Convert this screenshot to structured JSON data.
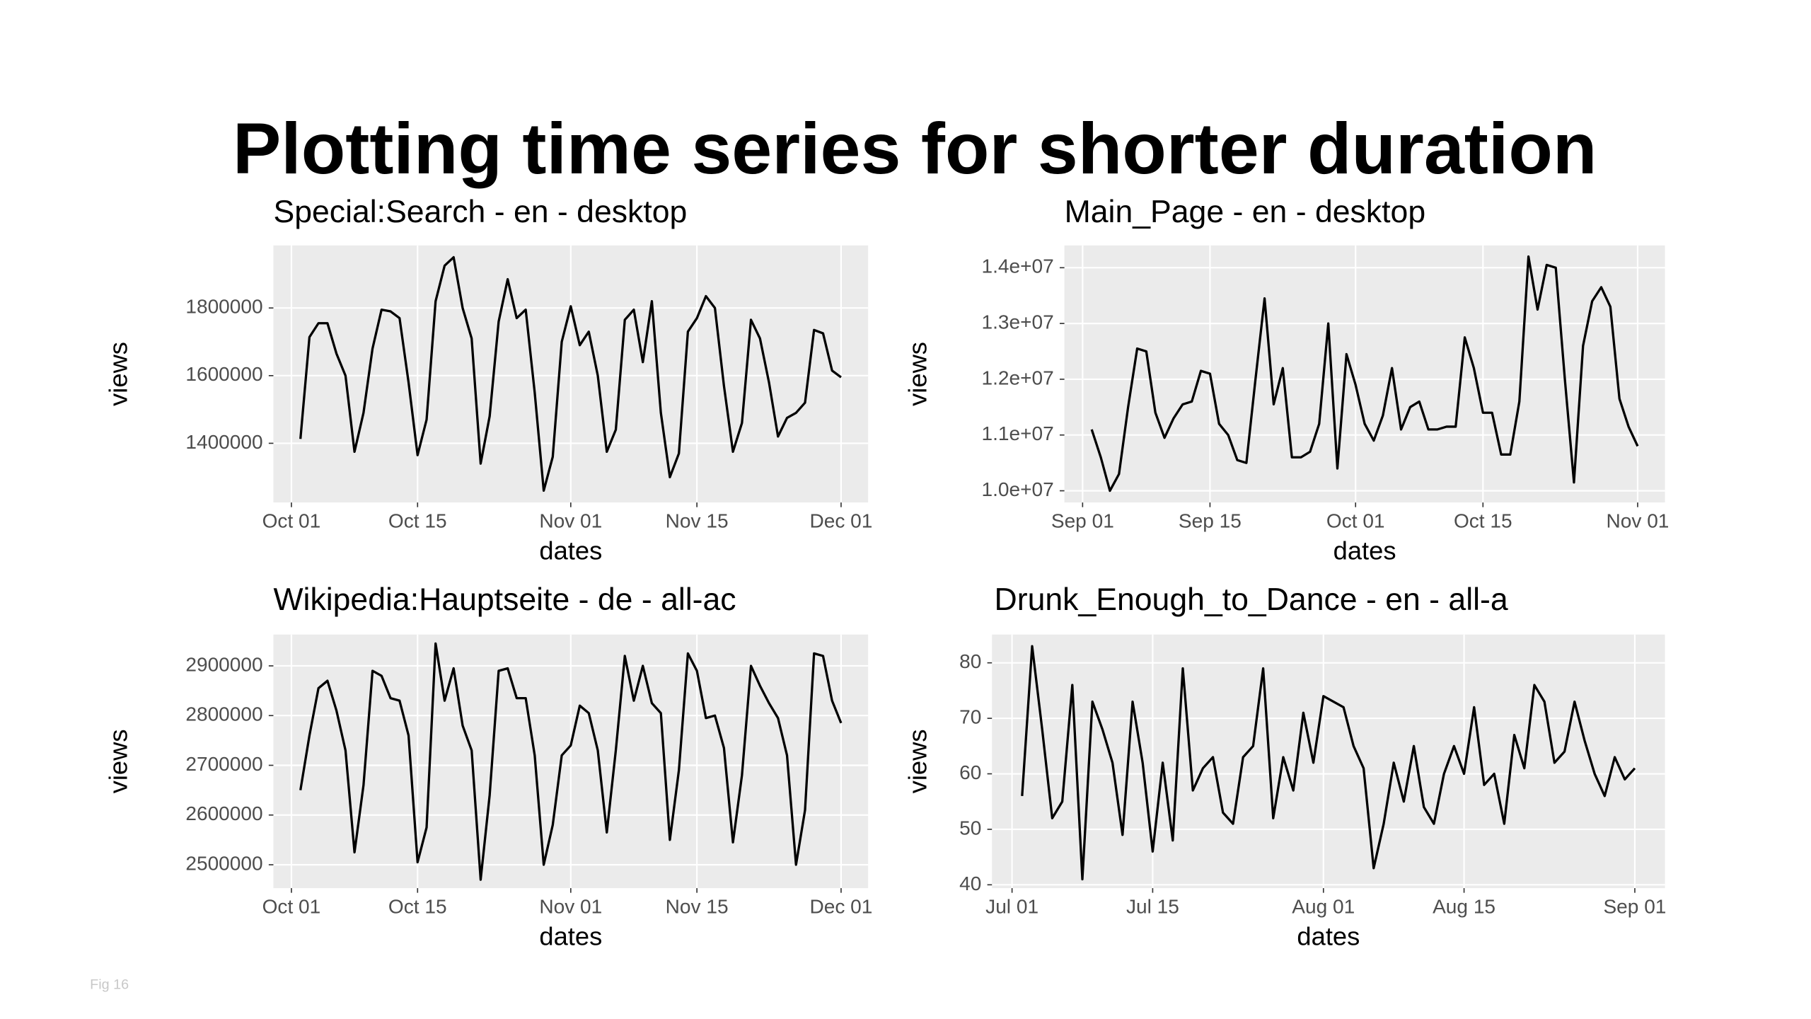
{
  "title": "Plotting time series for shorter duration",
  "footer": "Fig 16",
  "chart_data": [
    {
      "type": "line",
      "title": "Special:Search - en - desktop",
      "x_label": "dates",
      "y_label": "views",
      "color": "#000000",
      "grid": true,
      "x": [
        "10-02",
        "10-03",
        "10-04",
        "10-05",
        "10-06",
        "10-07",
        "10-08",
        "10-09",
        "10-10",
        "10-11",
        "10-12",
        "10-13",
        "10-14",
        "10-15",
        "10-16",
        "10-17",
        "10-18",
        "10-19",
        "10-20",
        "10-21",
        "10-22",
        "10-23",
        "10-24",
        "10-25",
        "10-26",
        "10-27",
        "10-28",
        "10-29",
        "10-30",
        "10-31",
        "11-01",
        "11-02",
        "11-03",
        "11-04",
        "11-05",
        "11-06",
        "11-07",
        "11-08",
        "11-09",
        "11-10",
        "11-11",
        "11-12",
        "11-13",
        "11-14",
        "11-15",
        "11-16",
        "11-17",
        "11-18",
        "11-19",
        "11-20",
        "11-21",
        "11-22",
        "11-23",
        "11-24",
        "11-25",
        "11-26",
        "11-27",
        "11-28",
        "11-29",
        "11-30",
        "12-01"
      ],
      "values": [
        1413000,
        1714000,
        1755000,
        1755000,
        1665000,
        1600000,
        1375000,
        1490000,
        1680000,
        1795000,
        1790000,
        1770000,
        1580000,
        1365000,
        1470000,
        1820000,
        1925000,
        1950000,
        1800000,
        1710000,
        1340000,
        1480000,
        1760000,
        1885000,
        1770000,
        1795000,
        1550000,
        1260000,
        1360000,
        1700000,
        1805000,
        1690000,
        1730000,
        1600000,
        1375000,
        1440000,
        1765000,
        1795000,
        1640000,
        1820000,
        1490000,
        1300000,
        1370000,
        1730000,
        1770000,
        1835000,
        1800000,
        1570000,
        1375000,
        1460000,
        1765000,
        1710000,
        1580000,
        1420000,
        1475000,
        1490000,
        1520000,
        1735000,
        1725000,
        1615000,
        1595000
      ],
      "xlim": [
        "09-29",
        "12-04"
      ],
      "xticks": [
        {
          "value": "10-01",
          "label": "Oct 01"
        },
        {
          "value": "10-15",
          "label": "Oct 15"
        },
        {
          "value": "11-01",
          "label": "Nov 01"
        },
        {
          "value": "11-15",
          "label": "Nov 15"
        },
        {
          "value": "12-01",
          "label": "Dec 01"
        }
      ],
      "ylim": [
        1225000,
        1985000
      ],
      "yticks": [
        1400000,
        1600000,
        1800000
      ]
    },
    {
      "type": "line",
      "title": "Main_Page - en - desktop",
      "x_label": "dates",
      "y_label": "views",
      "color": "#000000",
      "grid": true,
      "x": [
        "09-02",
        "09-03",
        "09-04",
        "09-05",
        "09-06",
        "09-07",
        "09-08",
        "09-09",
        "09-10",
        "09-11",
        "09-12",
        "09-13",
        "09-14",
        "09-15",
        "09-16",
        "09-17",
        "09-18",
        "09-19",
        "09-20",
        "09-21",
        "09-22",
        "09-23",
        "09-24",
        "09-25",
        "09-26",
        "09-27",
        "09-28",
        "09-29",
        "09-30",
        "10-01",
        "10-02",
        "10-03",
        "10-04",
        "10-05",
        "10-06",
        "10-07",
        "10-08",
        "10-09",
        "10-10",
        "10-11",
        "10-12",
        "10-13",
        "10-14",
        "10-15",
        "10-16",
        "10-17",
        "10-18",
        "10-19",
        "10-20",
        "10-21",
        "10-22",
        "10-23",
        "10-24",
        "10-25",
        "10-26",
        "10-27",
        "10-28",
        "10-29",
        "10-30",
        "10-31",
        "11-01"
      ],
      "values": [
        11100000,
        10600000,
        10000000,
        10300000,
        11500000,
        12550000,
        12500000,
        11400000,
        10950000,
        11300000,
        11550000,
        11600000,
        12150000,
        12100000,
        11200000,
        11000000,
        10550000,
        10500000,
        12000000,
        13450000,
        11550000,
        12200000,
        10600000,
        10600000,
        10700000,
        11200000,
        13000000,
        10400000,
        12450000,
        11900000,
        11200000,
        10900000,
        11350000,
        12200000,
        11100000,
        11500000,
        11600000,
        11100000,
        11100000,
        11150000,
        11150000,
        12750000,
        12200000,
        11400000,
        11400000,
        10650000,
        10650000,
        11600000,
        14200000,
        13250000,
        14050000,
        14000000,
        12000000,
        10150000,
        12600000,
        13400000,
        13650000,
        13300000,
        11650000,
        11150000,
        10800000
      ],
      "xlim": [
        "08-30",
        "11-04"
      ],
      "xticks": [
        {
          "value": "09-01",
          "label": "Sep 01"
        },
        {
          "value": "09-15",
          "label": "Sep 15"
        },
        {
          "value": "10-01",
          "label": "Oct 01"
        },
        {
          "value": "10-15",
          "label": "Oct 15"
        },
        {
          "value": "11-01",
          "label": "Nov 01"
        }
      ],
      "ylim": [
        9790000,
        14400000
      ],
      "yticks": [
        {
          "value": 10000000,
          "label": "1.0e+07"
        },
        {
          "value": 11000000,
          "label": "1.1e+07"
        },
        {
          "value": 12000000,
          "label": "1.2e+07"
        },
        {
          "value": 13000000,
          "label": "1.3e+07"
        },
        {
          "value": 14000000,
          "label": "1.4e+07"
        }
      ]
    },
    {
      "type": "line",
      "title": "Wikipedia:Hauptseite - de - all-ac",
      "x_label": "dates",
      "y_label": "views",
      "color": "#000000",
      "grid": true,
      "x": [
        "10-02",
        "10-03",
        "10-04",
        "10-05",
        "10-06",
        "10-07",
        "10-08",
        "10-09",
        "10-10",
        "10-11",
        "10-12",
        "10-13",
        "10-14",
        "10-15",
        "10-16",
        "10-17",
        "10-18",
        "10-19",
        "10-20",
        "10-21",
        "10-22",
        "10-23",
        "10-24",
        "10-25",
        "10-26",
        "10-27",
        "10-28",
        "10-29",
        "10-30",
        "10-31",
        "11-01",
        "11-02",
        "11-03",
        "11-04",
        "11-05",
        "11-06",
        "11-07",
        "11-08",
        "11-09",
        "11-10",
        "11-11",
        "11-12",
        "11-13",
        "11-14",
        "11-15",
        "11-16",
        "11-17",
        "11-18",
        "11-19",
        "11-20",
        "11-21",
        "11-22",
        "11-23",
        "11-24",
        "11-25",
        "11-26",
        "11-27",
        "11-28",
        "11-29",
        "11-30",
        "12-01"
      ],
      "values": [
        2650000,
        2760000,
        2855000,
        2870000,
        2810000,
        2730000,
        2525000,
        2660000,
        2890000,
        2880000,
        2835000,
        2830000,
        2760000,
        2505000,
        2575000,
        2945000,
        2830000,
        2895000,
        2780000,
        2730000,
        2470000,
        2640000,
        2890000,
        2895000,
        2835000,
        2835000,
        2720000,
        2500000,
        2580000,
        2720000,
        2740000,
        2820000,
        2805000,
        2730000,
        2565000,
        2730000,
        2920000,
        2830000,
        2900000,
        2825000,
        2805000,
        2550000,
        2690000,
        2925000,
        2890000,
        2795000,
        2800000,
        2735000,
        2545000,
        2680000,
        2900000,
        2860000,
        2825000,
        2795000,
        2720000,
        2500000,
        2610000,
        2925000,
        2920000,
        2830000,
        2785000
      ],
      "xlim": [
        "09-29",
        "12-04"
      ],
      "xticks": [
        {
          "value": "10-01",
          "label": "Oct 01"
        },
        {
          "value": "10-15",
          "label": "Oct 15"
        },
        {
          "value": "11-01",
          "label": "Nov 01"
        },
        {
          "value": "11-15",
          "label": "Nov 15"
        },
        {
          "value": "12-01",
          "label": "Dec 01"
        }
      ],
      "ylim": [
        2453000,
        2963000
      ],
      "yticks": [
        2500000,
        2600000,
        2700000,
        2800000,
        2900000
      ]
    },
    {
      "type": "line",
      "title": "Drunk_Enough_to_Dance - en - all-a",
      "x_label": "dates",
      "y_label": "views",
      "color": "#000000",
      "grid": true,
      "x": [
        "07-02",
        "07-03",
        "07-04",
        "07-05",
        "07-06",
        "07-07",
        "07-08",
        "07-09",
        "07-10",
        "07-11",
        "07-12",
        "07-13",
        "07-14",
        "07-15",
        "07-16",
        "07-17",
        "07-18",
        "07-19",
        "07-20",
        "07-21",
        "07-22",
        "07-23",
        "07-24",
        "07-25",
        "07-26",
        "07-27",
        "07-28",
        "07-29",
        "07-30",
        "07-31",
        "08-01",
        "08-02",
        "08-03",
        "08-04",
        "08-05",
        "08-06",
        "08-07",
        "08-08",
        "08-09",
        "08-10",
        "08-11",
        "08-12",
        "08-13",
        "08-14",
        "08-15",
        "08-16",
        "08-17",
        "08-18",
        "08-19",
        "08-20",
        "08-21",
        "08-22",
        "08-23",
        "08-24",
        "08-25",
        "08-26",
        "08-27",
        "08-28",
        "08-29",
        "08-30",
        "08-31",
        "09-01"
      ],
      "values": [
        56,
        83,
        68,
        52,
        55,
        76,
        41,
        73,
        68,
        62,
        49,
        73,
        62,
        46,
        62,
        48,
        79,
        57,
        61,
        63,
        53,
        51,
        63,
        65,
        79,
        52,
        63,
        57,
        71,
        62,
        74,
        73,
        72,
        65,
        61,
        43,
        51,
        62,
        55,
        65,
        54,
        51,
        60,
        65,
        60,
        72,
        58,
        60,
        51,
        67,
        61,
        76,
        73,
        62,
        64,
        73,
        66,
        60,
        56,
        63,
        59,
        61
      ],
      "xlim": [
        "06-29",
        "09-04"
      ],
      "xticks": [
        {
          "value": "07-01",
          "label": "Jul 01"
        },
        {
          "value": "07-15",
          "label": "Jul 15"
        },
        {
          "value": "08-01",
          "label": "Aug 01"
        },
        {
          "value": "08-15",
          "label": "Aug 15"
        },
        {
          "value": "09-01",
          "label": "Sep 01"
        }
      ],
      "ylim": [
        39.4,
        85.1
      ],
      "yticks": [
        40,
        50,
        60,
        70,
        80
      ]
    }
  ]
}
